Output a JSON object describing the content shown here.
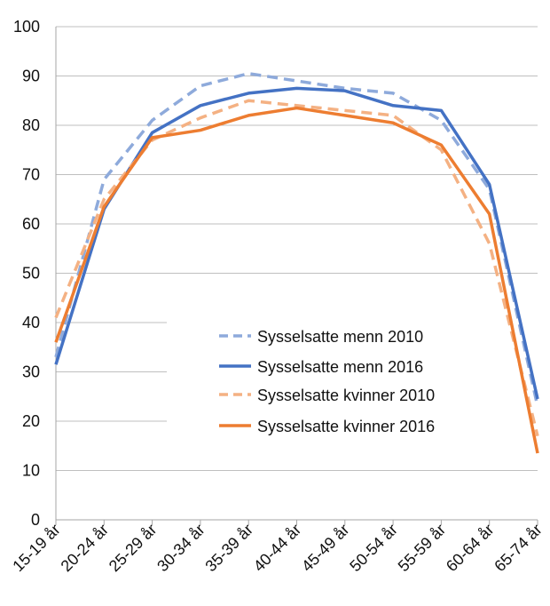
{
  "chart_data": {
    "type": "line",
    "title": "",
    "xlabel": "",
    "ylabel": "",
    "ylim": [
      0,
      100
    ],
    "yticks": [
      0,
      10,
      20,
      30,
      40,
      50,
      60,
      70,
      80,
      90,
      100
    ],
    "grid": "horizontal",
    "legend_position": "center-right",
    "categories": [
      "15-19 år",
      "20-24 år",
      "25-29 år",
      "30-34 år",
      "35-39 år",
      "40-44 år",
      "45-49 år",
      "50-54 år",
      "55-59 år",
      "60-64 år",
      "65-74 år"
    ],
    "series": [
      {
        "name": "Sysselsatte menn 2010",
        "color": "#8EAADB",
        "dash": "dashed",
        "values": [
          33,
          69,
          81,
          88,
          90.5,
          89,
          87.5,
          86.5,
          81,
          67,
          23
        ]
      },
      {
        "name": "Sysselsatte menn 2016",
        "color": "#4472C4",
        "dash": "solid",
        "values": [
          31.5,
          63,
          78.5,
          84,
          86.5,
          87.5,
          87,
          84,
          83,
          68,
          24.5
        ]
      },
      {
        "name": "Sysselsatte kvinner 2010",
        "color": "#F4B183",
        "dash": "dashed",
        "values": [
          41,
          65,
          77,
          81.5,
          85,
          84,
          83,
          82,
          75,
          56,
          17
        ]
      },
      {
        "name": "Sysselsatte kvinner 2016",
        "color": "#ED7D31",
        "dash": "solid",
        "values": [
          36,
          63.5,
          77.5,
          79,
          82,
          83.5,
          82,
          80.5,
          76,
          62,
          13.5
        ]
      }
    ]
  }
}
